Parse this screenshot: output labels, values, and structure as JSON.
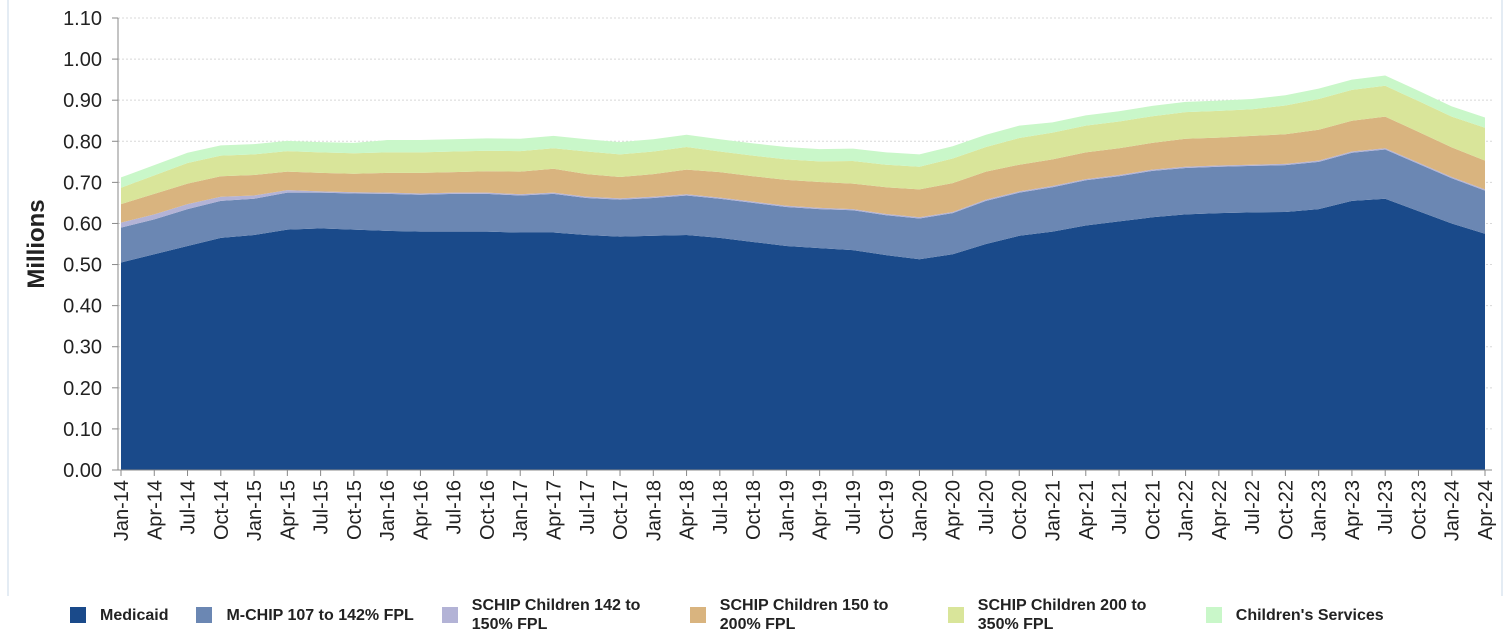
{
  "chart_data": {
    "type": "stacked-area",
    "y_label": "Millions",
    "categories": [
      "Jan-14",
      "Apr-14",
      "Jul-14",
      "Oct-14",
      "Jan-15",
      "Apr-15",
      "Jul-15",
      "Oct-15",
      "Jan-16",
      "Apr-16",
      "Jul-16",
      "Oct-16",
      "Jan-17",
      "Apr-17",
      "Jul-17",
      "Oct-17",
      "Jan-18",
      "Apr-18",
      "Jul-18",
      "Oct-18",
      "Jan-19",
      "Apr-19",
      "Jul-19",
      "Oct-19",
      "Jan-20",
      "Apr-20",
      "Jul-20",
      "Oct-20",
      "Jan-21",
      "Apr-21",
      "Jul-21",
      "Oct-21",
      "Jan-22",
      "Apr-22",
      "Jul-22",
      "Oct-22",
      "Jan-23",
      "Apr-23",
      "Jul-23",
      "Oct-23",
      "Jan-24",
      "Apr-24"
    ],
    "series": [
      {
        "name": "Medicaid",
        "color": "#1a4a8a",
        "values": [
          0.505,
          0.525,
          0.545,
          0.565,
          0.572,
          0.585,
          0.588,
          0.585,
          0.582,
          0.58,
          0.58,
          0.58,
          0.578,
          0.578,
          0.572,
          0.568,
          0.57,
          0.572,
          0.565,
          0.555,
          0.545,
          0.54,
          0.535,
          0.523,
          0.513,
          0.525,
          0.55,
          0.57,
          0.58,
          0.595,
          0.605,
          0.615,
          0.622,
          0.625,
          0.627,
          0.628,
          0.635,
          0.655,
          0.66,
          0.63,
          0.6,
          0.575
        ]
      },
      {
        "name": "M-CHIP 107 to 142%  FPL",
        "color": "#6b87b3",
        "values": [
          0.085,
          0.085,
          0.09,
          0.09,
          0.088,
          0.09,
          0.087,
          0.088,
          0.09,
          0.09,
          0.092,
          0.092,
          0.09,
          0.094,
          0.09,
          0.09,
          0.092,
          0.096,
          0.095,
          0.095,
          0.095,
          0.095,
          0.097,
          0.097,
          0.099,
          0.1,
          0.105,
          0.105,
          0.108,
          0.11,
          0.11,
          0.113,
          0.113,
          0.113,
          0.113,
          0.114,
          0.115,
          0.117,
          0.12,
          0.115,
          0.11,
          0.105
        ]
      },
      {
        "name": "SCHIP Children 142 to 150% FPL",
        "color": "#b3b3d6",
        "values": [
          0.012,
          0.012,
          0.012,
          0.01,
          0.008,
          0.006,
          0.003,
          0.003,
          0.003,
          0.003,
          0.003,
          0.003,
          0.003,
          0.003,
          0.003,
          0.003,
          0.003,
          0.003,
          0.003,
          0.003,
          0.003,
          0.003,
          0.003,
          0.003,
          0.003,
          0.003,
          0.003,
          0.003,
          0.003,
          0.003,
          0.003,
          0.003,
          0.003,
          0.003,
          0.003,
          0.003,
          0.003,
          0.003,
          0.003,
          0.003,
          0.003,
          0.003
        ]
      },
      {
        "name": "SCHIP  Children 150 to 200% FPL",
        "color": "#d9b47f",
        "values": [
          0.045,
          0.05,
          0.05,
          0.05,
          0.05,
          0.045,
          0.045,
          0.045,
          0.048,
          0.05,
          0.05,
          0.052,
          0.055,
          0.058,
          0.055,
          0.052,
          0.055,
          0.06,
          0.062,
          0.062,
          0.063,
          0.063,
          0.062,
          0.065,
          0.068,
          0.07,
          0.068,
          0.065,
          0.065,
          0.065,
          0.065,
          0.065,
          0.068,
          0.068,
          0.07,
          0.072,
          0.075,
          0.075,
          0.077,
          0.075,
          0.072,
          0.07
        ]
      },
      {
        "name": "SCHIP Children 200 to 350% FPL",
        "color": "#d9e59a",
        "values": [
          0.04,
          0.045,
          0.05,
          0.05,
          0.05,
          0.05,
          0.05,
          0.05,
          0.05,
          0.05,
          0.05,
          0.05,
          0.05,
          0.05,
          0.055,
          0.055,
          0.055,
          0.055,
          0.05,
          0.05,
          0.05,
          0.05,
          0.055,
          0.055,
          0.055,
          0.06,
          0.06,
          0.065,
          0.065,
          0.065,
          0.065,
          0.065,
          0.065,
          0.065,
          0.065,
          0.07,
          0.075,
          0.075,
          0.075,
          0.075,
          0.075,
          0.08
        ]
      },
      {
        "name": "Children's Services",
        "color": "#c9f7c9",
        "values": [
          0.025,
          0.025,
          0.025,
          0.025,
          0.025,
          0.025,
          0.025,
          0.025,
          0.03,
          0.03,
          0.03,
          0.03,
          0.03,
          0.03,
          0.03,
          0.03,
          0.03,
          0.03,
          0.03,
          0.03,
          0.03,
          0.03,
          0.03,
          0.03,
          0.03,
          0.03,
          0.03,
          0.03,
          0.025,
          0.025,
          0.025,
          0.025,
          0.025,
          0.025,
          0.025,
          0.025,
          0.025,
          0.025,
          0.025,
          0.025,
          0.025,
          0.025
        ]
      }
    ],
    "ylim": [
      0,
      1.1
    ],
    "yticks": [
      {
        "value": 0,
        "label": "0.00"
      },
      {
        "value": 0.1,
        "label": "0.10"
      },
      {
        "value": 0.2,
        "label": "0.20"
      },
      {
        "value": 0.3,
        "label": "0.30"
      },
      {
        "value": 0.4,
        "label": "0.40"
      },
      {
        "value": 0.5,
        "label": "0.50"
      },
      {
        "value": 0.6,
        "label": "0.60"
      },
      {
        "value": 0.7,
        "label": "0.70"
      },
      {
        "value": 0.8,
        "label": "0.80"
      },
      {
        "value": 0.9,
        "label": "0.90"
      },
      {
        "value": 1.0,
        "label": "1.00"
      },
      {
        "value": 1.1,
        "label": "1.10"
      }
    ],
    "grid": true
  }
}
